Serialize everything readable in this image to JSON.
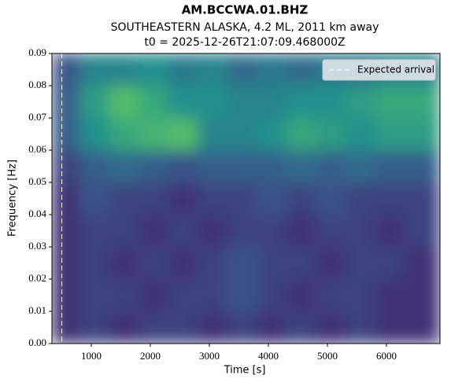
{
  "chart_data": {
    "type": "spectrogram",
    "title": "AM.BCCWA.01.BHZ",
    "subtitle": [
      "SOUTHEASTERN ALASKA, 4.2 ML, 2011 km away",
      "t0 = 2025-12-26T21:07:09.468000Z"
    ],
    "xlabel": "Time [s]",
    "ylabel": "Frequency [Hz]",
    "xlim": [
      333,
      6907
    ],
    "ylim": [
      0,
      0.09
    ],
    "xticks": [
      1000,
      2000,
      3000,
      4000,
      5000,
      6000
    ],
    "yticks": [
      {
        "value": 0,
        "label": "0.00"
      },
      {
        "value": 0.01,
        "label": "0.01"
      },
      {
        "value": 0.02,
        "label": "0.02"
      },
      {
        "value": 0.03,
        "label": "0.03"
      },
      {
        "value": 0.04,
        "label": "0.04"
      },
      {
        "value": 0.05,
        "label": "0.05"
      },
      {
        "value": 0.06,
        "label": "0.06"
      },
      {
        "value": 0.07,
        "label": "0.07"
      },
      {
        "value": 0.08,
        "label": "0.08"
      },
      {
        "value": 0.09,
        "label": "0.09"
      }
    ],
    "colormap": "viridis",
    "clim": [
      0,
      1
    ],
    "xbins": [
      333,
      800,
      1300,
      1800,
      2300,
      2800,
      3300,
      3800,
      4300,
      4800,
      5300,
      5800,
      6300,
      6907
    ],
    "ybins": [
      0,
      0.01,
      0.02,
      0.03,
      0.04,
      0.05,
      0.06,
      0.07,
      0.08,
      0.09
    ],
    "z": [
      [
        0.15,
        0.2,
        0.15,
        0.2,
        0.2,
        0.15,
        0.2,
        0.15,
        0.2,
        0.15,
        0.2,
        0.15,
        0.15
      ],
      [
        0.15,
        0.2,
        0.2,
        0.15,
        0.2,
        0.2,
        0.25,
        0.2,
        0.15,
        0.2,
        0.2,
        0.15,
        0.15
      ],
      [
        0.15,
        0.2,
        0.15,
        0.2,
        0.15,
        0.2,
        0.25,
        0.2,
        0.2,
        0.15,
        0.2,
        0.2,
        0.15
      ],
      [
        0.15,
        0.2,
        0.2,
        0.15,
        0.2,
        0.15,
        0.2,
        0.2,
        0.15,
        0.2,
        0.2,
        0.15,
        0.2
      ],
      [
        0.15,
        0.25,
        0.2,
        0.2,
        0.15,
        0.2,
        0.2,
        0.25,
        0.2,
        0.25,
        0.2,
        0.2,
        0.2
      ],
      [
        0.2,
        0.3,
        0.35,
        0.3,
        0.25,
        0.3,
        0.3,
        0.3,
        0.35,
        0.3,
        0.35,
        0.3,
        0.3
      ],
      [
        0.3,
        0.5,
        0.6,
        0.65,
        0.7,
        0.45,
        0.45,
        0.5,
        0.6,
        0.55,
        0.5,
        0.55,
        0.55
      ],
      [
        0.3,
        0.55,
        0.7,
        0.6,
        0.5,
        0.5,
        0.45,
        0.45,
        0.5,
        0.5,
        0.55,
        0.6,
        0.6
      ],
      [
        0.25,
        0.45,
        0.45,
        0.5,
        0.4,
        0.45,
        0.35,
        0.4,
        0.35,
        0.4,
        0.4,
        0.45,
        0.45
      ]
    ],
    "vlines": [
      {
        "x": 500,
        "label": "Expected arrival",
        "color": "#ffffff",
        "style": "dashed"
      }
    ],
    "legend": "upper right"
  }
}
